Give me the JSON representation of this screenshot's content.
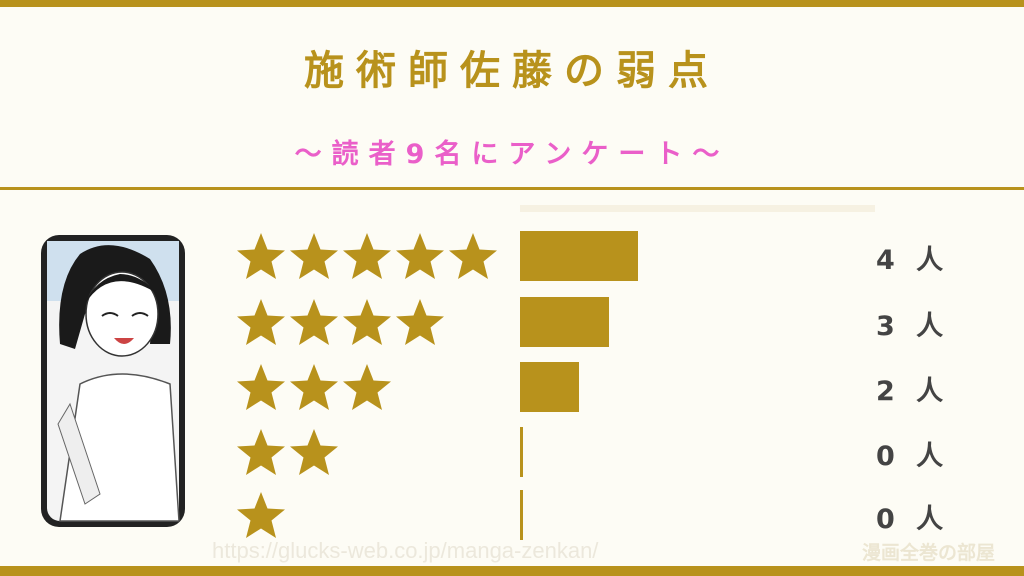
{
  "header": {
    "title": "施術師佐藤の弱点",
    "subtitle": "〜読者9名にアンケート〜"
  },
  "colors": {
    "accent": "#b8921c",
    "subtitle": "#ea5fc9",
    "text": "#444444",
    "background": "#fdfcf5"
  },
  "chart_data": {
    "type": "bar",
    "orientation": "horizontal",
    "categories": [
      "★★★★★",
      "★★★★",
      "★★★",
      "★★",
      "★"
    ],
    "stars": [
      5,
      4,
      3,
      2,
      1
    ],
    "values": [
      4,
      3,
      2,
      0,
      0
    ],
    "labels": [
      "4 人",
      "3 人",
      "2 人",
      "0 人",
      "0 人"
    ],
    "total": 9,
    "title": "施術師佐藤の弱点",
    "subtitle": "〜読者9名にアンケート〜"
  },
  "footer": {
    "url": "https://glucks-web.co.jp/manga-zenkan/",
    "watermark": "漫画全巻の部屋"
  }
}
